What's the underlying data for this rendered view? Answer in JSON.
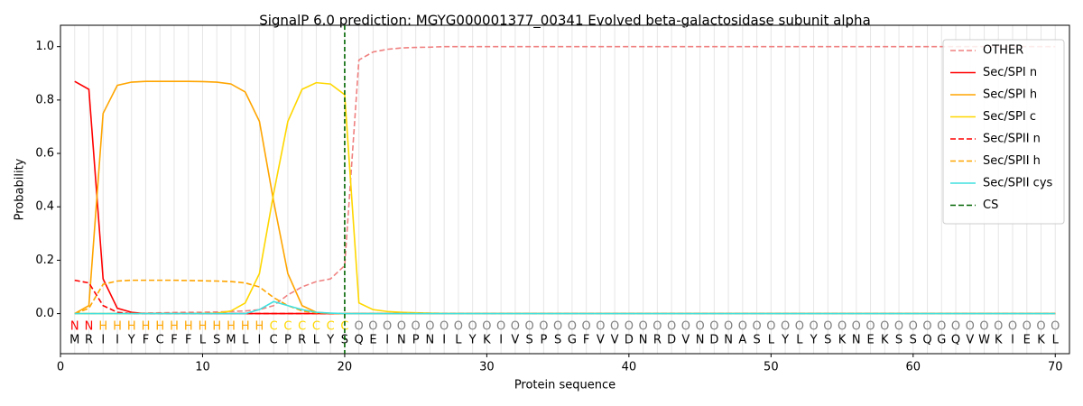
{
  "chart_data": {
    "type": "line",
    "title": "SignalP 6.0 prediction: MGYG000001377_00341 Evolved beta-galactosidase subunit alpha",
    "xlabel": "Protein sequence",
    "ylabel": "Probability",
    "xlim": [
      0,
      71
    ],
    "ylim": [
      -0.15,
      1.08
    ],
    "xticks": [
      0,
      10,
      20,
      30,
      40,
      50,
      60,
      70
    ],
    "yticks": [
      {
        "value": 0,
        "label": "0.0"
      },
      0.2,
      0.4,
      0.6,
      0.8,
      {
        "value": 1,
        "label": "1.0"
      }
    ],
    "grid": true,
    "legend": "upper right",
    "x": [
      1,
      2,
      3,
      4,
      5,
      6,
      7,
      8,
      9,
      10,
      11,
      12,
      13,
      14,
      15,
      16,
      17,
      18,
      19,
      20,
      21,
      22,
      23,
      24,
      25,
      26,
      27,
      28,
      29,
      30,
      31,
      32,
      33,
      34,
      35,
      36,
      37,
      38,
      39,
      40,
      41,
      42,
      43,
      44,
      45,
      46,
      47,
      48,
      49,
      50,
      51,
      52,
      53,
      54,
      55,
      56,
      57,
      58,
      59,
      60,
      61,
      62,
      63,
      64,
      65,
      66,
      67,
      68,
      69,
      70
    ],
    "residues": [
      "M",
      "R",
      "I",
      "I",
      "Y",
      "F",
      "C",
      "F",
      "F",
      "L",
      "S",
      "M",
      "L",
      "I",
      "C",
      "P",
      "R",
      "L",
      "Y",
      "S",
      "Q",
      "E",
      "I",
      "N",
      "P",
      "N",
      "I",
      "L",
      "Y",
      "K",
      "I",
      "V",
      "S",
      "P",
      "S",
      "G",
      "F",
      "V",
      "V",
      "D",
      "N",
      "R",
      "D",
      "V",
      "N",
      "D",
      "N",
      "A",
      "S",
      "L",
      "Y",
      "L",
      "Y",
      "S",
      "K",
      "N",
      "E",
      "K",
      "S",
      "S",
      "Q",
      "G",
      "Q",
      "V",
      "W",
      "K",
      "I",
      "E",
      "K",
      "L"
    ],
    "regions": [
      "N",
      "N",
      "H",
      "H",
      "H",
      "H",
      "H",
      "H",
      "H",
      "H",
      "H",
      "H",
      "H",
      "H",
      "C",
      "C",
      "C",
      "C",
      "C",
      "C",
      "O",
      "O",
      "O",
      "O",
      "O",
      "O",
      "O",
      "O",
      "O",
      "O",
      "O",
      "O",
      "O",
      "O",
      "O",
      "O",
      "O",
      "O",
      "O",
      "O",
      "O",
      "O",
      "O",
      "O",
      "O",
      "O",
      "O",
      "O",
      "O",
      "O",
      "O",
      "O",
      "O",
      "O",
      "O",
      "O",
      "O",
      "O",
      "O",
      "O",
      "O",
      "O",
      "O",
      "O",
      "O",
      "O",
      "O",
      "O",
      "O",
      "O"
    ],
    "region_colors": {
      "N": "#ff0000",
      "H": "#ffa500",
      "C": "#ffd700",
      "O": "#808080"
    },
    "series": [
      {
        "name": "OTHER",
        "color": "#f08080",
        "dashed": true,
        "values": [
          0,
          0,
          0,
          0,
          0,
          0.002,
          0.003,
          0.004,
          0.005,
          0.005,
          0.006,
          0.008,
          0.01,
          0.015,
          0.03,
          0.07,
          0.1,
          0.12,
          0.13,
          0.18,
          0.95,
          0.98,
          0.99,
          0.995,
          0.997,
          0.998,
          1,
          1,
          1,
          1,
          1,
          1,
          1,
          1,
          1,
          1,
          1,
          1,
          1,
          1,
          1,
          1,
          1,
          1,
          1,
          1,
          1,
          1,
          1,
          1,
          1,
          1,
          1,
          1,
          1,
          1,
          1,
          1,
          1,
          1,
          1,
          1,
          1,
          1,
          1,
          1,
          1,
          1,
          1,
          1
        ]
      },
      {
        "name": "Sec/SPI n",
        "color": "#ff0000",
        "dashed": false,
        "values": [
          0.87,
          0.84,
          0.13,
          0.02,
          0.005,
          0,
          0,
          0,
          0,
          0,
          0,
          0,
          0,
          0,
          0,
          0,
          0,
          0,
          0,
          0,
          0,
          0,
          0,
          0,
          0,
          0,
          0,
          0,
          0,
          0,
          0,
          0,
          0,
          0,
          0,
          0,
          0,
          0,
          0,
          0,
          0,
          0,
          0,
          0,
          0,
          0,
          0,
          0,
          0,
          0,
          0,
          0,
          0,
          0,
          0,
          0,
          0,
          0,
          0,
          0,
          0,
          0,
          0,
          0,
          0,
          0,
          0,
          0,
          0,
          0
        ]
      },
      {
        "name": "Sec/SPI h",
        "color": "#ffa500",
        "dashed": false,
        "values": [
          0,
          0.03,
          0.75,
          0.855,
          0.867,
          0.87,
          0.87,
          0.87,
          0.87,
          0.869,
          0.867,
          0.86,
          0.83,
          0.72,
          0.42,
          0.15,
          0.03,
          0.005,
          0.001,
          0,
          0,
          0,
          0,
          0,
          0,
          0,
          0,
          0,
          0,
          0,
          0,
          0,
          0,
          0,
          0,
          0,
          0,
          0,
          0,
          0,
          0,
          0,
          0,
          0,
          0,
          0,
          0,
          0,
          0,
          0,
          0,
          0,
          0,
          0,
          0,
          0,
          0,
          0,
          0,
          0,
          0,
          0,
          0,
          0,
          0,
          0,
          0,
          0,
          0,
          0
        ]
      },
      {
        "name": "Sec/SPI c",
        "color": "#ffd700",
        "dashed": false,
        "values": [
          0,
          0,
          0,
          0,
          0,
          0,
          0,
          0,
          0,
          0.001,
          0.002,
          0.01,
          0.04,
          0.15,
          0.45,
          0.72,
          0.84,
          0.865,
          0.86,
          0.82,
          0.04,
          0.015,
          0.008,
          0.005,
          0.003,
          0.002,
          0.001,
          0,
          0,
          0,
          0,
          0,
          0,
          0,
          0,
          0,
          0,
          0,
          0,
          0,
          0,
          0,
          0,
          0,
          0,
          0,
          0,
          0,
          0,
          0,
          0,
          0,
          0,
          0,
          0,
          0,
          0,
          0,
          0,
          0,
          0,
          0,
          0,
          0,
          0,
          0,
          0,
          0,
          0,
          0
        ]
      },
      {
        "name": "Sec/SPII n",
        "color": "#ff0000",
        "dashed": true,
        "values": [
          0.125,
          0.115,
          0.03,
          0.005,
          0,
          0,
          0,
          0,
          0,
          0,
          0,
          0,
          0,
          0,
          0,
          0,
          0,
          0,
          0,
          0,
          0,
          0,
          0,
          0,
          0,
          0,
          0,
          0,
          0,
          0,
          0,
          0,
          0,
          0,
          0,
          0,
          0,
          0,
          0,
          0,
          0,
          0,
          0,
          0,
          0,
          0,
          0,
          0,
          0,
          0,
          0,
          0,
          0,
          0,
          0,
          0,
          0,
          0,
          0,
          0,
          0,
          0,
          0,
          0,
          0,
          0,
          0,
          0,
          0,
          0
        ]
      },
      {
        "name": "Sec/SPII h",
        "color": "#ffa500",
        "dashed": true,
        "values": [
          0,
          0.02,
          0.11,
          0.122,
          0.125,
          0.125,
          0.125,
          0.125,
          0.124,
          0.123,
          0.122,
          0.12,
          0.115,
          0.1,
          0.06,
          0.03,
          0.01,
          0.003,
          0.001,
          0,
          0,
          0,
          0,
          0,
          0,
          0,
          0,
          0,
          0,
          0,
          0,
          0,
          0,
          0,
          0,
          0,
          0,
          0,
          0,
          0,
          0,
          0,
          0,
          0,
          0,
          0,
          0,
          0,
          0,
          0,
          0,
          0,
          0,
          0,
          0,
          0,
          0,
          0,
          0,
          0,
          0,
          0,
          0,
          0,
          0,
          0,
          0,
          0,
          0,
          0
        ]
      },
      {
        "name": "Sec/SPII cys",
        "color": "#40e0e0",
        "dashed": false,
        "values": [
          0,
          0,
          0,
          0,
          0,
          0,
          0,
          0,
          0,
          0,
          0,
          0,
          0,
          0.015,
          0.045,
          0.03,
          0.015,
          0.005,
          0.002,
          0,
          0,
          0,
          0,
          0,
          0,
          0,
          0,
          0,
          0,
          0,
          0,
          0,
          0,
          0,
          0,
          0,
          0,
          0,
          0,
          0,
          0,
          0,
          0,
          0,
          0,
          0,
          0,
          0,
          0,
          0,
          0,
          0,
          0,
          0,
          0,
          0,
          0,
          0,
          0,
          0,
          0,
          0,
          0,
          0,
          0,
          0,
          0,
          0,
          0,
          0
        ]
      }
    ],
    "markers": [
      {
        "name": "CS",
        "color": "#006400",
        "dashed": true,
        "x": 20
      }
    ]
  }
}
